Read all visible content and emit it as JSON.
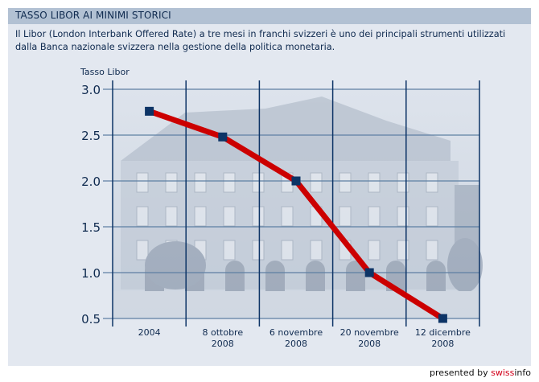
{
  "header": {
    "title": "TASSO LIBOR AI MINIMI STORICI"
  },
  "description": {
    "line1": "Il Libor (London Interbank Offered Rate) a tre mesi in franchi svizzeri è uno dei principali strumenti utilizzati",
    "line2": "dalla Banca nazionale svizzera nella gestione della politica monetaria."
  },
  "colors": {
    "header_bg": "#b2c1d3",
    "panel_bg": "#e3e8f0",
    "line": "#cc0000",
    "marker": "#0d3466",
    "grid_h": "#5e7fa3",
    "grid_v": "#0d3466",
    "text": "#0f2a4f",
    "brand_red": "#d2001a"
  },
  "chart_data": {
    "type": "line",
    "title": "TASSO LIBOR AI MINIMI STORICI",
    "ylabel": "Tasso Libor",
    "xlabel": "",
    "ylim": [
      0.5,
      3.0
    ],
    "yticks": [
      "3.0",
      "2.5",
      "2.0",
      "1.5",
      "1.0",
      "0.5"
    ],
    "ytick_values": [
      3.0,
      2.5,
      2.0,
      1.5,
      1.0,
      0.5
    ],
    "categories": [
      [
        "2004"
      ],
      [
        "8 ottobre",
        "2008"
      ],
      [
        "6 novembre",
        "2008"
      ],
      [
        "20 novembre",
        "2008"
      ],
      [
        "12 dicembre",
        "2008"
      ]
    ],
    "series": [
      {
        "name": "Tasso Libor",
        "values": [
          2.76,
          2.48,
          2.0,
          1.0,
          0.5
        ]
      }
    ],
    "grid": true,
    "legend": "none",
    "background": "photo of Swiss National Bank building (faded)"
  },
  "footer": {
    "credit_prefix": "presented by ",
    "brand_red": "swiss",
    "brand_rest": "info"
  }
}
